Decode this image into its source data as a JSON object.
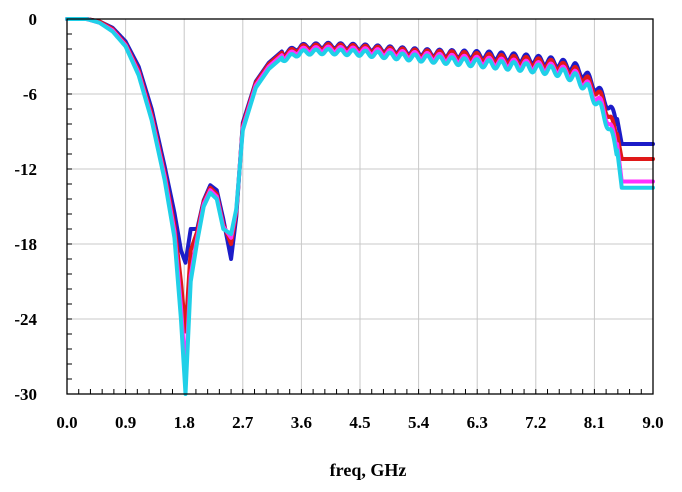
{
  "chart_data": {
    "type": "line",
    "title": "",
    "xlabel": "freq, GHz",
    "ylabel": "",
    "xlim": [
      0,
      9
    ],
    "ylim": [
      -30,
      0
    ],
    "x_ticks": [
      "0.0",
      "0.9",
      "1.8",
      "2.7",
      "3.6",
      "4.5",
      "5.4",
      "6.3",
      "7.2",
      "8.1",
      "9.0"
    ],
    "y_ticks": [
      "0",
      "-6",
      "-12",
      "-18",
      "-24",
      "-30"
    ],
    "grid": true,
    "legend": "none",
    "series": [
      {
        "color": "#1c1cc8",
        "x": [
          0,
          0.3,
          0.5,
          0.7,
          0.9,
          1.1,
          1.3,
          1.5,
          1.65,
          1.75,
          1.82,
          1.9,
          2.0,
          2.1,
          2.2,
          2.3,
          2.4,
          2.52,
          2.6,
          2.7,
          2.9,
          3.1,
          3.3,
          3.6,
          4.0,
          4.5,
          5.0,
          5.5,
          6.0,
          6.5,
          7.0,
          7.5,
          7.8,
          8.0,
          8.2,
          8.35,
          8.45,
          8.52,
          8.6,
          9.0
        ],
        "y": [
          0,
          0,
          -0.2,
          -0.7,
          -1.8,
          -3.8,
          -7.2,
          -11.8,
          -15.5,
          -18.5,
          -19.5,
          -16.8,
          -16.8,
          -14.5,
          -13.3,
          -13.7,
          -16.0,
          -19.2,
          -15.8,
          -8.3,
          -5.0,
          -3.5,
          -2.6,
          -2.0,
          -1.9,
          -2.0,
          -2.2,
          -2.4,
          -2.5,
          -2.6,
          -2.8,
          -3.1,
          -3.5,
          -4.3,
          -5.6,
          -6.8,
          -8.0,
          -10.0,
          -10.0,
          -10.0
        ]
      },
      {
        "color": "#e01818",
        "x": [
          0,
          0.3,
          0.5,
          0.7,
          0.9,
          1.1,
          1.3,
          1.5,
          1.65,
          1.75,
          1.82,
          1.9,
          2.0,
          2.1,
          2.2,
          2.3,
          2.4,
          2.52,
          2.6,
          2.7,
          2.9,
          3.1,
          3.3,
          3.6,
          4.0,
          4.5,
          5.0,
          5.5,
          6.0,
          6.5,
          7.0,
          7.5,
          7.8,
          8.0,
          8.2,
          8.35,
          8.45,
          8.52,
          8.6,
          9.0
        ],
        "y": [
          0,
          0,
          -0.2,
          -0.8,
          -2.0,
          -4.1,
          -7.6,
          -12.3,
          -16.5,
          -21.0,
          -25.0,
          -18.5,
          -17.0,
          -14.6,
          -13.5,
          -14.0,
          -16.4,
          -18.0,
          -15.5,
          -8.5,
          -5.1,
          -3.6,
          -2.7,
          -2.1,
          -2.0,
          -2.1,
          -2.3,
          -2.5,
          -2.6,
          -2.8,
          -3.0,
          -3.3,
          -3.8,
          -4.6,
          -5.9,
          -7.6,
          -9.2,
          -11.2,
          -11.2,
          -11.2
        ]
      },
      {
        "color": "#ff30ff",
        "x": [
          0,
          0.3,
          0.5,
          0.7,
          0.9,
          1.1,
          1.3,
          1.5,
          1.65,
          1.75,
          1.82,
          1.9,
          2.0,
          2.1,
          2.2,
          2.3,
          2.4,
          2.52,
          2.6,
          2.7,
          2.9,
          3.1,
          3.3,
          3.6,
          4.0,
          4.5,
          5.0,
          5.5,
          6.0,
          6.5,
          7.0,
          7.5,
          7.8,
          8.0,
          8.2,
          8.35,
          8.45,
          8.52,
          8.6,
          9.0
        ],
        "y": [
          0,
          0,
          -0.3,
          -0.9,
          -2.1,
          -4.3,
          -7.9,
          -12.6,
          -17.0,
          -23.0,
          -28.5,
          -20.5,
          -17.5,
          -14.8,
          -13.7,
          -14.2,
          -16.6,
          -17.5,
          -15.3,
          -8.7,
          -5.3,
          -3.8,
          -2.9,
          -2.3,
          -2.2,
          -2.3,
          -2.5,
          -2.7,
          -2.9,
          -3.1,
          -3.3,
          -3.6,
          -4.1,
          -5.0,
          -6.4,
          -8.2,
          -10.0,
          -13.0,
          -13.0,
          -13.0
        ]
      },
      {
        "color": "#20d0e8",
        "x": [
          0,
          0.3,
          0.5,
          0.7,
          0.9,
          1.1,
          1.3,
          1.5,
          1.65,
          1.75,
          1.82,
          1.9,
          2.0,
          2.1,
          2.2,
          2.3,
          2.4,
          2.52,
          2.6,
          2.7,
          2.9,
          3.1,
          3.3,
          3.6,
          4.0,
          4.5,
          5.0,
          5.5,
          6.0,
          6.5,
          7.0,
          7.5,
          7.8,
          8.0,
          8.2,
          8.35,
          8.45,
          8.52,
          8.6,
          9.0
        ],
        "y": [
          0,
          0,
          -0.3,
          -1.0,
          -2.2,
          -4.5,
          -8.1,
          -12.9,
          -17.5,
          -24.0,
          -30.0,
          -21.0,
          -17.8,
          -15.0,
          -13.9,
          -14.4,
          -16.8,
          -17.2,
          -15.2,
          -8.9,
          -5.5,
          -4.0,
          -3.1,
          -2.5,
          -2.4,
          -2.5,
          -2.7,
          -2.9,
          -3.1,
          -3.3,
          -3.5,
          -3.8,
          -4.3,
          -5.2,
          -6.8,
          -8.6,
          -10.5,
          -13.5,
          -13.5,
          -13.5
        ]
      }
    ]
  }
}
